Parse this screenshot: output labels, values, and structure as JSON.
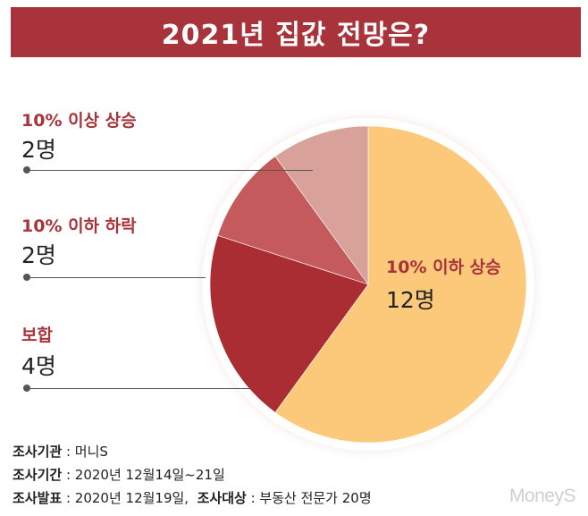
{
  "title": "2021년 집값 전망은?",
  "chart_data": {
    "type": "pie",
    "slices": [
      {
        "label": "10% 이하 상승",
        "count_label": "12명",
        "value": 12,
        "color": "#fcc97a"
      },
      {
        "label": "보합",
        "count_label": "4명",
        "value": 4,
        "color": "#a92d33"
      },
      {
        "label": "10% 이하 하락",
        "count_label": "2명",
        "value": 2,
        "color": "#c45a5b"
      },
      {
        "label": "10% 이상 상승",
        "count_label": "2명",
        "value": 2,
        "color": "#d8a29a"
      }
    ]
  },
  "footer": {
    "line1_key": "조사기관",
    "line1_val": " : 머니S",
    "line2_key": "조사기간",
    "line2_val": " : 2020년 12월14일~21일",
    "line3_key": "조사발표",
    "line3_val": " : 2020년 12월19일,",
    "line3_key2": "조사대상",
    "line3_val2": " : 부동산 전문가 20명"
  },
  "watermark": "MoneyS",
  "colors": {
    "header": "#a8333a",
    "accent_text": "#a8333a"
  }
}
